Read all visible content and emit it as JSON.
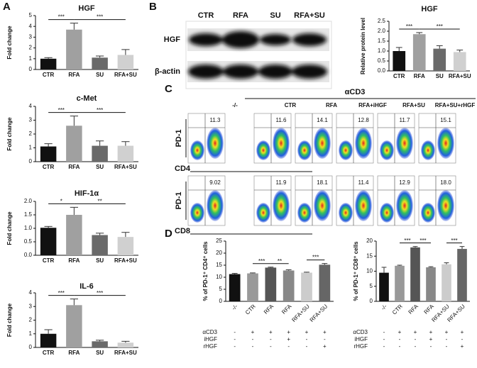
{
  "panel_labels": [
    "A",
    "B",
    "C",
    "D"
  ],
  "chart_data": [
    {
      "type": "bar",
      "title": "HGF",
      "ylabel": "Fold change",
      "categories": [
        "CTR",
        "RFA",
        "SU",
        "RFA+SU"
      ],
      "values": [
        1.0,
        3.7,
        1.1,
        1.35
      ],
      "errors": [
        0.1,
        0.6,
        0.15,
        0.5
      ],
      "colors": [
        "#111111",
        "#a0a0a0",
        "#6a6a6a",
        "#d0d0d0"
      ],
      "ylim": [
        0,
        5
      ],
      "yticks": [
        0,
        1,
        2,
        3,
        4,
        5
      ],
      "annotations": [
        {
          "label": "***",
          "span": [
            0,
            1
          ]
        },
        {
          "label": "***",
          "span": [
            1,
            3
          ]
        }
      ]
    },
    {
      "type": "bar",
      "title": "c-Met",
      "ylabel": "Fold change",
      "categories": [
        "CTR",
        "RFA",
        "SU",
        "RFA+SU"
      ],
      "values": [
        1.1,
        2.6,
        1.15,
        1.15
      ],
      "errors": [
        0.2,
        0.7,
        0.35,
        0.3
      ],
      "colors": [
        "#111111",
        "#a0a0a0",
        "#6a6a6a",
        "#d0d0d0"
      ],
      "ylim": [
        0,
        4
      ],
      "yticks": [
        0,
        1,
        2,
        3,
        4
      ],
      "annotations": [
        {
          "label": "***",
          "span": [
            0,
            1
          ]
        },
        {
          "label": "***",
          "span": [
            1,
            3
          ]
        }
      ]
    },
    {
      "type": "bar",
      "title": "HIF-1α",
      "ylabel": "Fold change",
      "categories": [
        "CTR",
        "RFA",
        "SU",
        "RFA+SU"
      ],
      "values": [
        1.02,
        1.5,
        0.75,
        0.68
      ],
      "errors": [
        0.05,
        0.28,
        0.07,
        0.17
      ],
      "colors": [
        "#111111",
        "#a0a0a0",
        "#6a6a6a",
        "#d0d0d0"
      ],
      "ylim": [
        0,
        2
      ],
      "yticks": [
        {
          "value": 0,
          "label": "0.0"
        },
        0.5,
        {
          "value": 1,
          "label": "1.0"
        },
        1.5,
        {
          "value": 2,
          "label": "2.0"
        }
      ],
      "annotations": [
        {
          "label": "*",
          "span": [
            0,
            1
          ]
        },
        {
          "label": "**",
          "span": [
            1,
            3
          ]
        }
      ]
    },
    {
      "type": "bar",
      "title": "IL-6",
      "ylabel": "Fold change",
      "categories": [
        "CTR",
        "RFA",
        "SU",
        "RFA+SU"
      ],
      "values": [
        1.0,
        3.1,
        0.45,
        0.35
      ],
      "errors": [
        0.3,
        0.45,
        0.08,
        0.1
      ],
      "colors": [
        "#111111",
        "#a0a0a0",
        "#6a6a6a",
        "#d0d0d0"
      ],
      "ylim": [
        0,
        4
      ],
      "yticks": [
        0,
        1,
        2,
        3,
        4
      ],
      "annotations": [
        {
          "label": "***",
          "span": [
            0,
            1
          ]
        },
        {
          "label": "***",
          "span": [
            1,
            3
          ]
        }
      ]
    },
    {
      "type": "bar",
      "title": "HGF",
      "ylabel": "Relative protein level",
      "categories": [
        "CTR",
        "RFA",
        "SU",
        "RFA+SU"
      ],
      "values": [
        1.0,
        1.85,
        1.12,
        0.95
      ],
      "errors": [
        0.18,
        0.08,
        0.15,
        0.1
      ],
      "colors": [
        "#111111",
        "#a0a0a0",
        "#6a6a6a",
        "#d0d0d0"
      ],
      "ylim": [
        0,
        2.5
      ],
      "yticks": [
        {
          "value": 0,
          "label": "0.0"
        },
        0.5,
        {
          "value": 1,
          "label": "1.0"
        },
        1.5,
        {
          "value": 2,
          "label": "2.0"
        },
        2.5
      ],
      "annotations": [
        {
          "label": "***",
          "span": [
            0,
            1
          ]
        },
        {
          "label": "***",
          "span": [
            1,
            3
          ]
        }
      ]
    },
    {
      "type": "bar",
      "ylabel": "% of PD-1⁺ CD4⁺ cells",
      "categories": [
        "-/-",
        "CTR",
        "RFA",
        "RFA",
        "RFA+SU",
        "RFA+SU"
      ],
      "values": [
        11.3,
        11.6,
        14.0,
        12.8,
        11.9,
        15.2
      ],
      "errors": [
        0.3,
        0.2,
        0.2,
        0.3,
        0.2,
        0.5
      ],
      "colors": [
        "#111111",
        "#999999",
        "#555555",
        "#888888",
        "#cccccc",
        "#666666"
      ],
      "ylim": [
        0,
        25
      ],
      "yticks": [
        0,
        5,
        10,
        15,
        20,
        25
      ],
      "annotations": [
        {
          "label": "***",
          "span": [
            1,
            2
          ]
        },
        {
          "label": "**",
          "span": [
            2,
            3
          ]
        },
        {
          "label": "***",
          "span": [
            4,
            5
          ]
        }
      ],
      "treatments": [
        {
          "name": "αCD3",
          "marks": [
            "-",
            "+",
            "+",
            "+",
            "+",
            "+"
          ]
        },
        {
          "name": "iHGF",
          "marks": [
            "-",
            "-",
            "-",
            "+",
            "-",
            "-"
          ]
        },
        {
          "name": "rHGF",
          "marks": [
            "-",
            "-",
            "-",
            "-",
            "-",
            "+"
          ]
        }
      ]
    },
    {
      "type": "bar",
      "ylabel": "% of PD-1⁺ CD8⁺ cells",
      "categories": [
        "-/-",
        "CTR",
        "RFA",
        "RFA",
        "RFA+SU",
        "RFA+SU"
      ],
      "values": [
        9.5,
        11.8,
        17.9,
        11.3,
        12.3,
        17.4
      ],
      "errors": [
        1.8,
        0.2,
        0.3,
        0.2,
        0.5,
        0.8
      ],
      "colors": [
        "#111111",
        "#999999",
        "#555555",
        "#888888",
        "#cccccc",
        "#666666"
      ],
      "ylim": [
        0,
        20
      ],
      "yticks": [
        0,
        5,
        10,
        15,
        20
      ],
      "annotations": [
        {
          "label": "***",
          "span": [
            1,
            2
          ]
        },
        {
          "label": "***",
          "span": [
            2,
            3
          ]
        },
        {
          "label": "***",
          "span": [
            4,
            5
          ]
        }
      ],
      "treatments": [
        {
          "name": "αCD3",
          "marks": [
            "-",
            "+",
            "+",
            "+",
            "+",
            "+"
          ]
        },
        {
          "name": "iHGF",
          "marks": [
            "-",
            "-",
            "-",
            "+",
            "-",
            "-"
          ]
        },
        {
          "name": "rHGF",
          "marks": [
            "-",
            "-",
            "-",
            "-",
            "-",
            "+"
          ]
        }
      ]
    }
  ],
  "blot": {
    "lanes": [
      "CTR",
      "RFA",
      "SU",
      "RFA+SU"
    ],
    "rows": [
      "HGF",
      "β-actin"
    ]
  },
  "flow": {
    "group": "αCD3",
    "columns": [
      "-/-",
      "CTR",
      "RFA",
      "RFA+iHGF",
      "RFA+SU",
      "RFA+SU+rHGF"
    ],
    "y_label": "PD-1",
    "rows": [
      {
        "x_label": "CD4",
        "percent": [
          "11.3",
          "11.6",
          "14.1",
          "12.8",
          "11.7",
          "15.1"
        ]
      },
      {
        "x_label": "CD8",
        "percent": [
          "9.02",
          "11.9",
          "18.1",
          "11.4",
          "12.9",
          "18.0"
        ]
      }
    ]
  }
}
